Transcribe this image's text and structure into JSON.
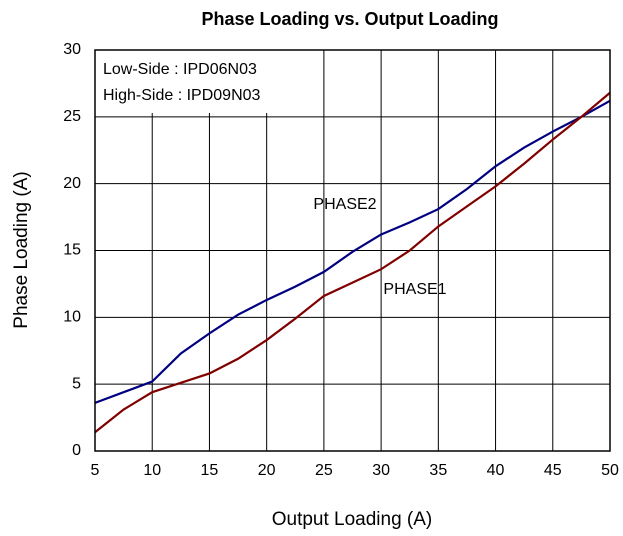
{
  "chart_data": {
    "type": "line",
    "title": "Phase Loading vs. Output Loading",
    "x_label": "Output Loading (A)",
    "y_label": "Phase Loading (A)",
    "annotations": [
      "Low-Side : IPD06N03",
      "High-Side : IPD09N03"
    ],
    "x": [
      5,
      7.5,
      10,
      12.5,
      15,
      17.5,
      20,
      22.5,
      25,
      27.5,
      30,
      32.5,
      35,
      37.5,
      40,
      42.5,
      45,
      47.5,
      50
    ],
    "series": [
      {
        "name": "PHASE2",
        "color": "#000080",
        "values": [
          3.6,
          4.4,
          5.2,
          7.3,
          8.8,
          10.2,
          11.3,
          12.3,
          13.4,
          14.9,
          16.2,
          17.1,
          18.1,
          19.6,
          21.3,
          22.7,
          23.9,
          25.0,
          26.2
        ]
      },
      {
        "name": "PHASE1",
        "color": "#800000",
        "values": [
          1.4,
          3.1,
          4.4,
          5.1,
          5.8,
          6.9,
          8.3,
          9.9,
          11.6,
          12.6,
          13.6,
          15.0,
          16.8,
          18.3,
          19.8,
          21.5,
          23.3,
          25.0,
          26.8
        ]
      }
    ],
    "xlim": [
      5,
      50
    ],
    "xticks": [
      5,
      10,
      15,
      20,
      25,
      30,
      35,
      40,
      45,
      50
    ],
    "ylim": [
      0,
      30
    ],
    "yticks": [
      0,
      5,
      10,
      15,
      20,
      25,
      30
    ],
    "grid": true
  }
}
